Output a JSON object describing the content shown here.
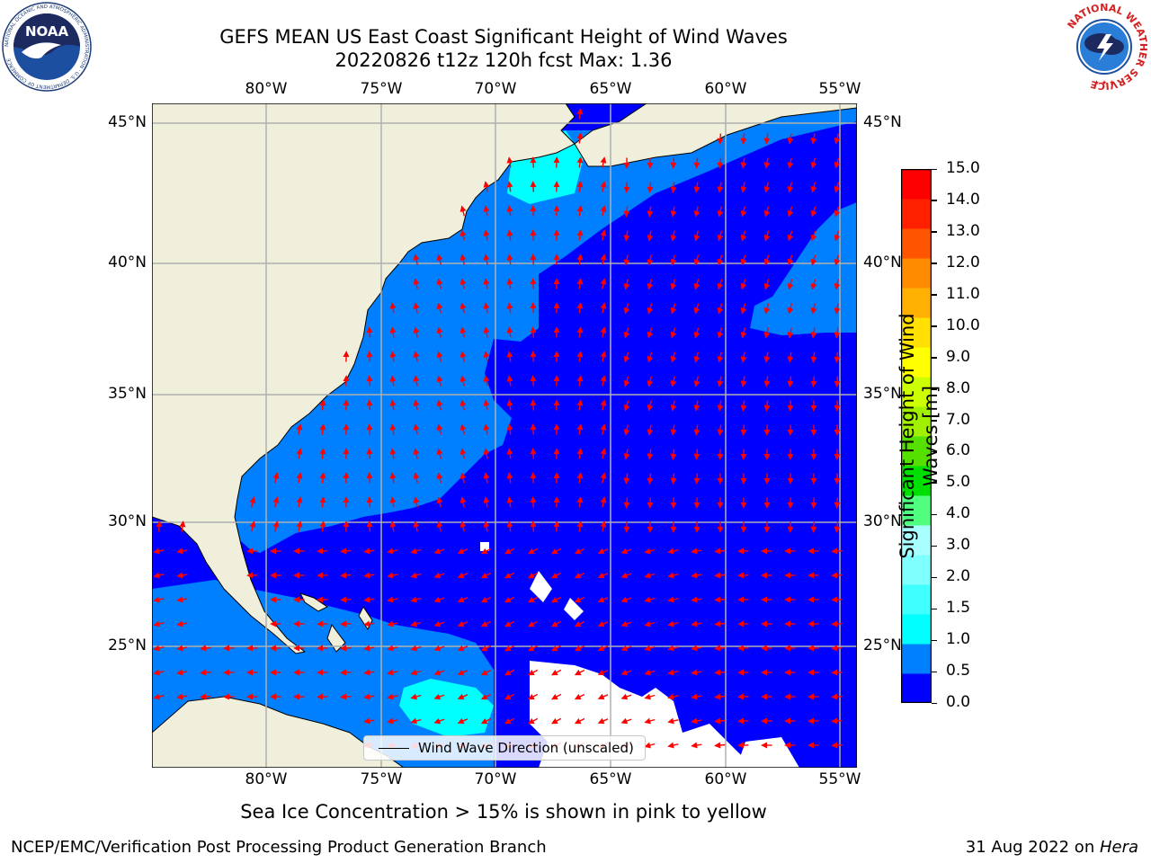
{
  "header": {
    "title_line1": "GEFS MEAN US East Coast Significant Height of Wind Waves",
    "title_line2": "20220826 t12z 120h fcst   Max: 1.36"
  },
  "map": {
    "lon_labels": [
      "80°W",
      "75°W",
      "70°W",
      "65°W",
      "60°W",
      "55°W"
    ],
    "lat_labels": [
      "45°N",
      "40°N",
      "35°N",
      "30°N",
      "25°N"
    ],
    "extent": {
      "lon_min": -85,
      "lon_max": -54.3,
      "lat_min": 20.5,
      "lat_max": 46
    },
    "gridlines": true,
    "arrow_color": "#ff0000",
    "land_color": "#efefdc",
    "legend_label": "Wind Wave Direction (unscaled)"
  },
  "colorbar": {
    "label": "Significant Height of Wind Waves [m]",
    "ticks": [
      "0.0",
      "0.5",
      "1.0",
      "1.5",
      "2.0",
      "3.0",
      "4.0",
      "5.0",
      "6.0",
      "7.0",
      "8.0",
      "9.0",
      "10.0",
      "11.0",
      "12.0",
      "13.0",
      "14.0",
      "15.0"
    ],
    "colors": [
      "#0000ff",
      "#0080ff",
      "#00ffff",
      "#40ffff",
      "#80ffff",
      "#a8ffff",
      "#50ff80",
      "#00e000",
      "#55e000",
      "#a0f000",
      "#ccff00",
      "#ffff00",
      "#ffe000",
      "#ffb000",
      "#ff8c00",
      "#ff5500",
      "#ff2000",
      "#ff0000"
    ]
  },
  "footer": {
    "note": "Sea Ice Concentration > 15% is shown in pink to yellow",
    "left": "NCEP/EMC/Verification Post Processing Product Generation Branch",
    "right_date": "31 Aug 2022 on ",
    "right_host": "Hera"
  },
  "logos": {
    "noaa_text": "NOAA",
    "noaa_ring_text": "NATIONAL OCEANIC AND ATMOSPHERIC ADMINISTRATION · U.S. DEPARTMENT OF COMMERCE",
    "nws_ring_text": "NATIONAL WEATHER SERVICE"
  }
}
